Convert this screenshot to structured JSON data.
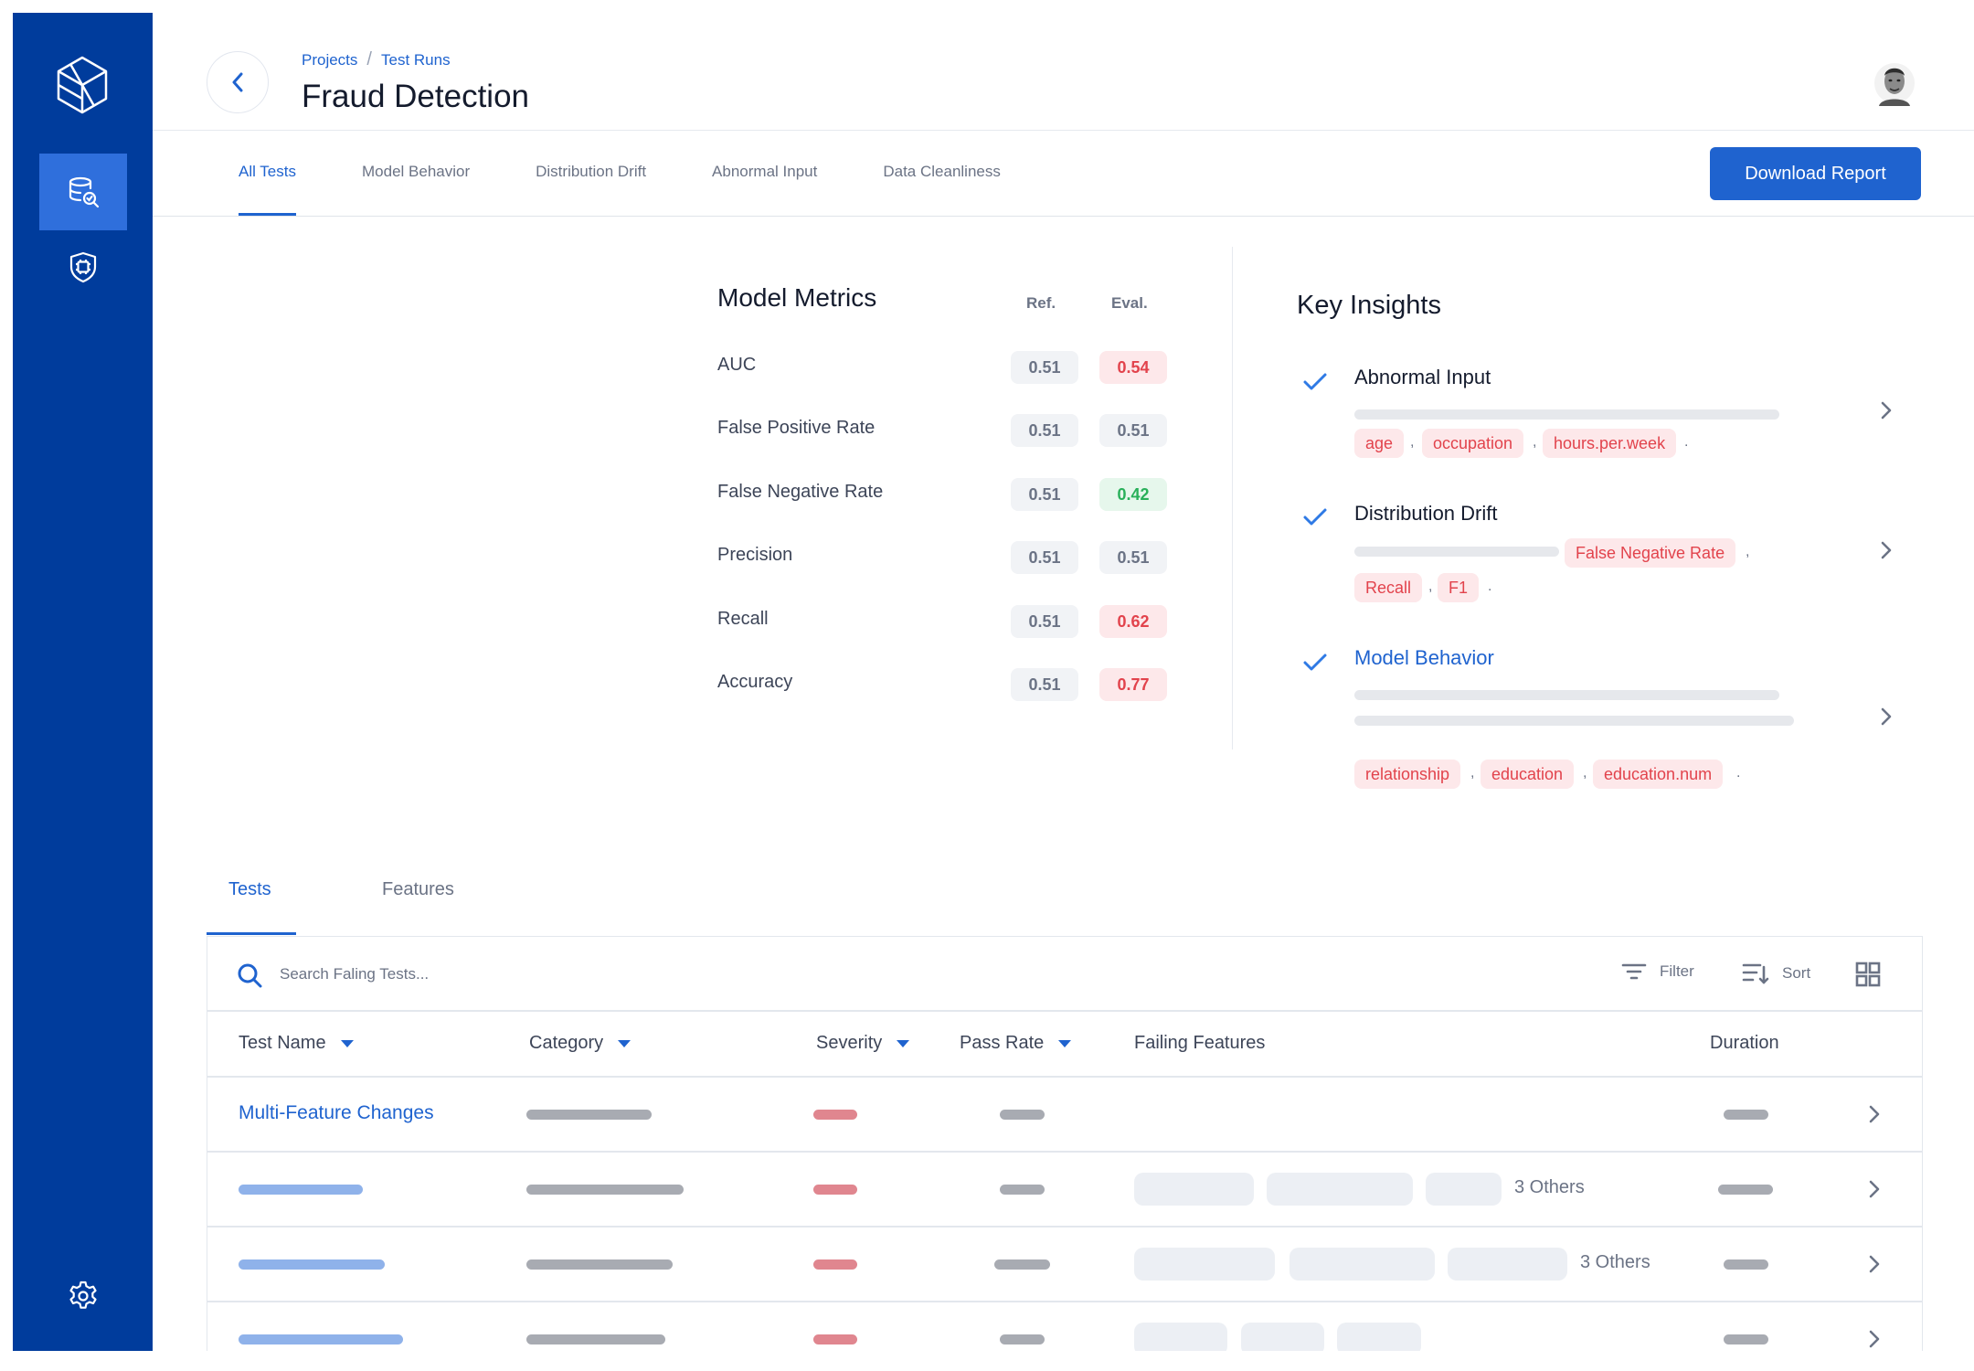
{
  "breadcrumb": [
    "Projects",
    "Test Runs"
  ],
  "page_title": "Fraud Detection",
  "top_tabs": [
    "All Tests",
    "Model Behavior",
    "Distribution Drift",
    "Abnormal Input",
    "Data Cleanliness"
  ],
  "download_label": "Download Report",
  "metrics": {
    "title": "Model Metrics",
    "col_ref": "Ref.",
    "col_eval": "Eval.",
    "rows": [
      {
        "name": "AUC",
        "ref": "0.51",
        "eval": "0.54",
        "status": "bad"
      },
      {
        "name": "False Positive Rate",
        "ref": "0.51",
        "eval": "0.51",
        "status": "neutral"
      },
      {
        "name": "False Negative Rate",
        "ref": "0.51",
        "eval": "0.42",
        "status": "good"
      },
      {
        "name": "Precision",
        "ref": "0.51",
        "eval": "0.51",
        "status": "neutral"
      },
      {
        "name": "Recall",
        "ref": "0.51",
        "eval": "0.62",
        "status": "bad"
      },
      {
        "name": "Accuracy",
        "ref": "0.51",
        "eval": "0.77",
        "status": "bad"
      }
    ]
  },
  "insights": {
    "title": "Key Insights",
    "items": [
      {
        "title": "Abnormal Input",
        "tags": [
          "age",
          "occupation",
          "hours.per.week"
        ]
      },
      {
        "title": "Distribution Drift",
        "tags": [
          "False Negative Rate",
          "Recall",
          "F1"
        ]
      },
      {
        "title": "Model Behavior",
        "tags": [
          "relationship",
          "education",
          "education.num"
        ]
      }
    ]
  },
  "bottom_tabs": [
    "Tests",
    "Features"
  ],
  "table": {
    "search_placeholder": "Search Faling Tests...",
    "filter_label": "Filter",
    "sort_label": "Sort",
    "columns": [
      "Test Name",
      "Category",
      "Severity",
      "Pass Rate",
      "Failing Features",
      "Duration"
    ],
    "first_row_name": "Multi-Feature Changes",
    "others_label": "3 Others"
  },
  "colors": {
    "sidebar": "#003c9c",
    "accent": "#1f63cf",
    "bad": "#e2434c",
    "good": "#29b05a"
  }
}
